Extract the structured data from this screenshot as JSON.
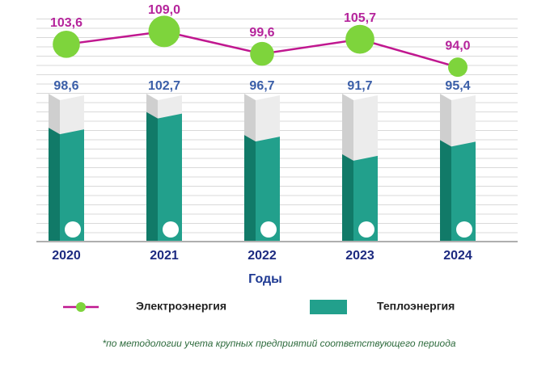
{
  "chart_data": {
    "type": "bar",
    "categories": [
      "2020",
      "2021",
      "2022",
      "2023",
      "2024"
    ],
    "x_label": "Годы",
    "series": [
      {
        "name": "Теплоэнергия",
        "type": "bar",
        "color": "#22a08c",
        "values": [
          98.6,
          102.7,
          96.7,
          91.7,
          95.4
        ],
        "value_labels": [
          "98,6",
          "102,7",
          "96,7",
          "91,7",
          "95,4"
        ]
      },
      {
        "name": "Электроэнергия",
        "type": "line",
        "axis": "y2",
        "color": "#c0178f",
        "values": [
          103.6,
          109.0,
          99.6,
          105.7,
          94.0
        ],
        "value_labels": [
          "103,6",
          "109,0",
          "99,6",
          "105,7",
          "94,0"
        ]
      }
    ],
    "ylim": [
      70,
      110
    ],
    "y2lim": [
      90,
      112
    ],
    "note": "*по методологии  учета крупных предприятий соответствующего периода"
  }
}
